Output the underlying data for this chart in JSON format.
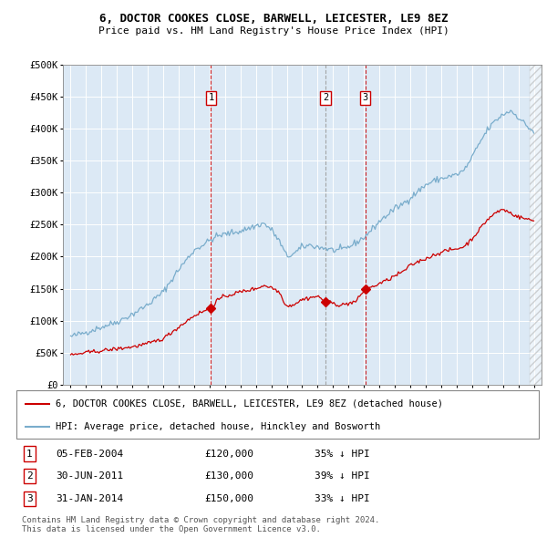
{
  "title": "6, DOCTOR COOKES CLOSE, BARWELL, LEICESTER, LE9 8EZ",
  "subtitle": "Price paid vs. HM Land Registry's House Price Index (HPI)",
  "legend_label_red": "6, DOCTOR COOKES CLOSE, BARWELL, LEICESTER, LE9 8EZ (detached house)",
  "legend_label_blue": "HPI: Average price, detached house, Hinckley and Bosworth",
  "footer": "Contains HM Land Registry data © Crown copyright and database right 2024.\nThis data is licensed under the Open Government Licence v3.0.",
  "transactions": [
    {
      "num": 1,
      "date": "05-FEB-2004",
      "price": 120000,
      "hpi_pct": "35% ↓ HPI"
    },
    {
      "num": 2,
      "date": "30-JUN-2011",
      "price": 130000,
      "hpi_pct": "39% ↓ HPI"
    },
    {
      "num": 3,
      "date": "31-JAN-2014",
      "price": 150000,
      "hpi_pct": "33% ↓ HPI"
    }
  ],
  "transaction_dates_decimal": [
    2004.09,
    2011.5,
    2014.08
  ],
  "vline_colors": [
    "#cc0000",
    "#999999",
    "#cc0000"
  ],
  "marker_prices": [
    120000,
    130000,
    150000
  ],
  "plot_bg_color": "#dce9f5",
  "grid_color": "#ffffff",
  "red_line_color": "#cc0000",
  "blue_line_color": "#7aadcc",
  "ylim": [
    0,
    500000
  ],
  "yticks": [
    0,
    50000,
    100000,
    150000,
    200000,
    250000,
    300000,
    350000,
    400000,
    450000,
    500000
  ],
  "xlim_start": 1994.5,
  "xlim_end": 2025.5,
  "xticks": [
    1995,
    1996,
    1997,
    1998,
    1999,
    2000,
    2001,
    2002,
    2003,
    2004,
    2005,
    2006,
    2007,
    2008,
    2009,
    2010,
    2011,
    2012,
    2013,
    2014,
    2015,
    2016,
    2017,
    2018,
    2019,
    2020,
    2021,
    2022,
    2023,
    2024,
    2025
  ]
}
